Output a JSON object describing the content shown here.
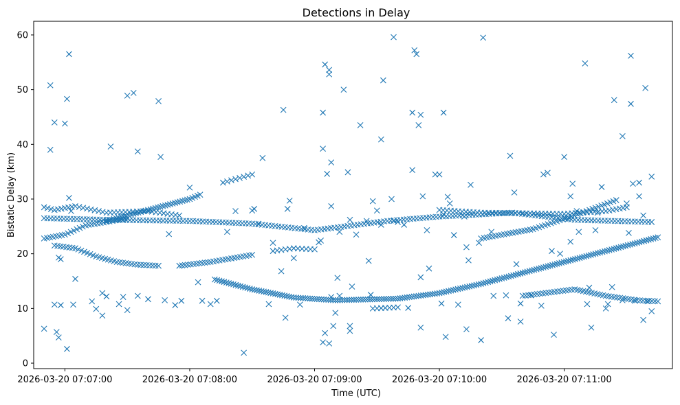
{
  "chart_data": {
    "type": "scatter",
    "title": "Detections in Delay",
    "xlabel": "Time (UTC)",
    "ylabel": "Bistatic Delay (km)",
    "marker": "x",
    "color": "#1f77b4",
    "x_unit": "seconds since 2026-03-20 07:07:00",
    "xlim": [
      -15,
      292
    ],
    "ylim": [
      -1,
      62.5
    ],
    "x_ticks": [
      {
        "value": 0,
        "label": "2026-03-20 07:07:00"
      },
      {
        "value": 60,
        "label": "2026-03-20 07:08:00"
      },
      {
        "value": 120,
        "label": "2026-03-20 07:09:00"
      },
      {
        "value": 180,
        "label": "2026-03-20 07:10:00"
      },
      {
        "value": 240,
        "label": "2026-03-20 07:11:00"
      }
    ],
    "y_ticks": [
      {
        "value": 0,
        "label": "0"
      },
      {
        "value": 10,
        "label": "10"
      },
      {
        "value": 20,
        "label": "20"
      },
      {
        "value": 30,
        "label": "30"
      },
      {
        "value": 40,
        "label": "40"
      },
      {
        "value": 50,
        "label": "50"
      },
      {
        "value": 60,
        "label": "60"
      }
    ],
    "tracks": [
      {
        "name": "track-26-steady",
        "points": [
          [
            -10,
            26.5
          ],
          [
            20,
            26.2
          ],
          [
            60,
            26.0
          ],
          [
            90,
            25.5
          ],
          [
            120,
            24.3
          ],
          [
            155,
            26.0
          ],
          [
            180,
            26.8
          ],
          [
            215,
            27.5
          ],
          [
            245,
            26.2
          ],
          [
            282,
            25.8
          ]
        ],
        "step": 1.6
      },
      {
        "name": "track-28-early",
        "points": [
          [
            -10,
            28.5
          ],
          [
            -5,
            28.0
          ],
          [
            5,
            28.7
          ],
          [
            20,
            27.5
          ],
          [
            40,
            27.8
          ],
          [
            55,
            27.0
          ]
        ],
        "step": 1.8
      },
      {
        "name": "track-22-rising",
        "points": [
          [
            -10,
            22.8
          ],
          [
            0,
            23.5
          ],
          [
            10,
            25.2
          ],
          [
            20,
            25.8
          ],
          [
            30,
            26.5
          ]
        ],
        "step": 1.5
      },
      {
        "name": "track-21-descending",
        "points": [
          [
            -5,
            21.5
          ],
          [
            5,
            21.0
          ],
          [
            15,
            19.5
          ],
          [
            25,
            18.5
          ],
          [
            35,
            18.0
          ],
          [
            45,
            17.8
          ]
        ],
        "step": 1.5
      },
      {
        "name": "track-upper-rising",
        "points": [
          [
            20,
            26.0
          ],
          [
            40,
            28.0
          ],
          [
            60,
            30.0
          ],
          [
            65,
            30.8
          ]
        ],
        "step": 1.2
      },
      {
        "name": "track-mid-rising",
        "points": [
          [
            55,
            17.8
          ],
          [
            70,
            18.5
          ],
          [
            90,
            19.8
          ]
        ],
        "step": 1.4
      },
      {
        "name": "track-33-rising",
        "points": [
          [
            76,
            33.0
          ],
          [
            90,
            34.5
          ]
        ],
        "step": 2.0
      },
      {
        "name": "track-main-dip",
        "points": [
          [
            72,
            15.3
          ],
          [
            90,
            13.5
          ],
          [
            110,
            12.0
          ],
          [
            130,
            11.5
          ],
          [
            160,
            11.8
          ],
          [
            180,
            12.8
          ],
          [
            200,
            14.5
          ],
          [
            230,
            17.5
          ],
          [
            255,
            20.0
          ],
          [
            285,
            23.0
          ]
        ],
        "step": 1.1
      },
      {
        "name": "track-24-late",
        "points": [
          [
            200,
            22.8
          ],
          [
            225,
            24.5
          ],
          [
            245,
            27.0
          ],
          [
            265,
            29.8
          ]
        ],
        "step": 1.4
      },
      {
        "name": "track-28-late",
        "points": [
          [
            180,
            28.0
          ],
          [
            200,
            27.5
          ],
          [
            240,
            27.3
          ],
          [
            260,
            27.8
          ],
          [
            270,
            28.5
          ]
        ],
        "step": 1.8
      },
      {
        "name": "track-13-late",
        "points": [
          [
            220,
            12.3
          ],
          [
            245,
            13.5
          ],
          [
            260,
            12.3
          ],
          [
            275,
            11.5
          ],
          [
            285,
            11.3
          ]
        ],
        "step": 1.4
      },
      {
        "name": "track-10-mid",
        "points": [
          [
            148,
            10.0
          ],
          [
            160,
            10.2
          ]
        ],
        "step": 2.0
      },
      {
        "name": "track-20-mid",
        "points": [
          [
            100,
            20.5
          ],
          [
            110,
            21.0
          ],
          [
            120,
            20.8
          ]
        ],
        "step": 2.2
      }
    ],
    "scattered_points": [
      [
        -10,
        6.3
      ],
      [
        -7,
        50.8
      ],
      [
        -7,
        39.0
      ],
      [
        -5,
        44.0
      ],
      [
        -5,
        10.7
      ],
      [
        -4,
        5.7
      ],
      [
        -3,
        4.7
      ],
      [
        -2,
        10.6
      ],
      [
        -3,
        19.3
      ],
      [
        -2,
        19.0
      ],
      [
        0,
        43.8
      ],
      [
        1,
        2.6
      ],
      [
        1,
        48.3
      ],
      [
        2,
        56.5
      ],
      [
        2,
        30.2
      ],
      [
        3,
        27.8
      ],
      [
        4,
        10.7
      ],
      [
        5,
        15.4
      ],
      [
        13,
        11.3
      ],
      [
        15,
        9.9
      ],
      [
        18,
        8.7
      ],
      [
        18,
        12.8
      ],
      [
        20,
        12.2
      ],
      [
        22,
        39.6
      ],
      [
        26,
        10.8
      ],
      [
        28,
        12.1
      ],
      [
        30,
        9.7
      ],
      [
        30,
        48.9
      ],
      [
        33,
        49.4
      ],
      [
        35,
        38.7
      ],
      [
        35,
        12.3
      ],
      [
        40,
        11.7
      ],
      [
        45,
        47.9
      ],
      [
        46,
        37.7
      ],
      [
        50,
        23.6
      ],
      [
        48,
        11.5
      ],
      [
        53,
        10.6
      ],
      [
        56,
        11.4
      ],
      [
        60,
        32.1
      ],
      [
        64,
        14.8
      ],
      [
        66,
        11.4
      ],
      [
        70,
        10.8
      ],
      [
        73,
        11.4
      ],
      [
        78,
        24.0
      ],
      [
        82,
        27.8
      ],
      [
        86,
        1.9
      ],
      [
        90,
        27.9
      ],
      [
        91,
        28.2
      ],
      [
        93,
        25.5
      ],
      [
        95,
        37.5
      ],
      [
        98,
        10.8
      ],
      [
        100,
        22.0
      ],
      [
        104,
        16.8
      ],
      [
        106,
        8.3
      ],
      [
        105,
        46.3
      ],
      [
        107,
        28.2
      ],
      [
        108,
        29.7
      ],
      [
        110,
        19.2
      ],
      [
        113,
        10.7
      ],
      [
        115,
        24.7
      ],
      [
        122,
        22.1
      ],
      [
        123,
        22.4
      ],
      [
        125,
        54.6
      ],
      [
        127,
        53.6
      ],
      [
        127,
        52.8
      ],
      [
        125,
        5.5
      ],
      [
        128,
        12.1
      ],
      [
        132,
        12.3
      ],
      [
        128,
        28.7
      ],
      [
        124,
        39.2
      ],
      [
        126,
        34.6
      ],
      [
        128,
        36.7
      ],
      [
        124,
        45.8
      ],
      [
        124,
        3.8
      ],
      [
        127,
        3.6
      ],
      [
        129,
        6.8
      ],
      [
        130,
        9.2
      ],
      [
        131,
        15.6
      ],
      [
        132,
        24.0
      ],
      [
        136,
        34.9
      ],
      [
        134,
        50.0
      ],
      [
        137,
        5.9
      ],
      [
        137,
        6.8
      ],
      [
        138,
        14.0
      ],
      [
        137,
        26.2
      ],
      [
        140,
        23.5
      ],
      [
        142,
        43.5
      ],
      [
        145,
        26.0
      ],
      [
        146,
        18.7
      ],
      [
        147,
        12.5
      ],
      [
        148,
        29.6
      ],
      [
        150,
        27.9
      ],
      [
        152,
        25.3
      ],
      [
        153,
        51.7
      ],
      [
        152,
        40.9
      ],
      [
        158,
        59.6
      ],
      [
        157,
        30.0
      ],
      [
        158,
        26.0
      ],
      [
        160,
        25.8
      ],
      [
        163,
        25.3
      ],
      [
        165,
        10.1
      ],
      [
        167,
        35.3
      ],
      [
        167,
        45.8
      ],
      [
        168,
        57.2
      ],
      [
        169,
        56.5
      ],
      [
        170,
        43.5
      ],
      [
        171,
        45.4
      ],
      [
        171,
        15.7
      ],
      [
        171,
        6.5
      ],
      [
        172,
        30.5
      ],
      [
        175,
        17.3
      ],
      [
        174,
        24.3
      ],
      [
        178,
        34.5
      ],
      [
        180,
        34.5
      ],
      [
        182,
        27.2
      ],
      [
        182,
        45.8
      ],
      [
        181,
        10.9
      ],
      [
        183,
        4.8
      ],
      [
        184,
        30.4
      ],
      [
        185,
        29.2
      ],
      [
        187,
        23.4
      ],
      [
        189,
        10.7
      ],
      [
        192,
        26.8
      ],
      [
        193,
        21.2
      ],
      [
        193,
        6.2
      ],
      [
        194,
        18.8
      ],
      [
        195,
        32.6
      ],
      [
        200,
        4.2
      ],
      [
        201,
        59.5
      ],
      [
        199,
        22.0
      ],
      [
        205,
        24.0
      ],
      [
        206,
        12.3
      ],
      [
        212,
        12.4
      ],
      [
        213,
        8.2
      ],
      [
        214,
        37.9
      ],
      [
        216,
        31.2
      ],
      [
        217,
        18.1
      ],
      [
        219,
        10.9
      ],
      [
        219,
        7.6
      ],
      [
        220,
        27.4
      ],
      [
        224,
        12.4
      ],
      [
        229,
        10.5
      ],
      [
        230,
        34.5
      ],
      [
        232,
        34.8
      ],
      [
        234,
        20.5
      ],
      [
        235,
        5.2
      ],
      [
        238,
        20.0
      ],
      [
        240,
        37.7
      ],
      [
        243,
        30.5
      ],
      [
        243,
        22.2
      ],
      [
        244,
        32.8
      ],
      [
        246,
        27.8
      ],
      [
        247,
        24.0
      ],
      [
        250,
        54.8
      ],
      [
        252,
        13.8
      ],
      [
        253,
        6.5
      ],
      [
        255,
        24.3
      ],
      [
        256,
        27.5
      ],
      [
        258,
        32.2
      ],
      [
        261,
        10.8
      ],
      [
        263,
        13.9
      ],
      [
        264,
        48.1
      ],
      [
        268,
        41.5
      ],
      [
        270,
        29.2
      ],
      [
        271,
        23.8
      ],
      [
        273,
        32.8
      ],
      [
        272,
        56.2
      ],
      [
        272,
        47.4
      ],
      [
        276,
        30.5
      ],
      [
        278,
        27.0
      ],
      [
        279,
        50.3
      ],
      [
        278,
        7.9
      ],
      [
        280,
        11.3
      ],
      [
        282,
        9.5
      ],
      [
        282,
        34.1
      ],
      [
        276,
        33.0
      ],
      [
        274,
        11.4
      ],
      [
        268,
        11.5
      ],
      [
        260,
        10.0
      ],
      [
        251,
        10.8
      ]
    ]
  }
}
